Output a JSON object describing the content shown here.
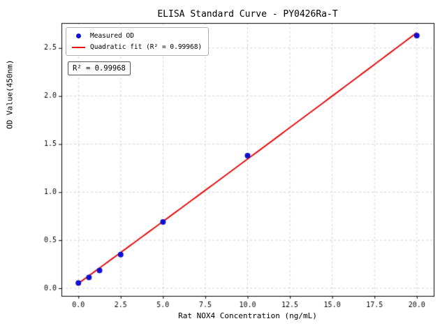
{
  "chart_data": {
    "type": "scatter",
    "title": "ELISA Standard Curve - PY0426Ra-T",
    "xlabel": "Rat NOX4 Concentration (ng/mL)",
    "ylabel": "OD Value(450nm)",
    "xlim": [
      -1,
      21
    ],
    "ylim": [
      -0.08,
      2.76
    ],
    "xticks": [
      0.0,
      2.5,
      5.0,
      7.5,
      10.0,
      12.5,
      15.0,
      17.5,
      20.0
    ],
    "yticks": [
      0.0,
      0.5,
      1.0,
      1.5,
      2.0,
      2.5
    ],
    "grid": true,
    "grid_style": "dashed",
    "legend_position": "upper left",
    "annotation": "R² = 0.99968",
    "colors": {
      "points": "#1010d0",
      "fit_line": "#e81010",
      "grid": "#c9c9c9",
      "axis": "#000000"
    },
    "series": [
      {
        "name": "Measured OD",
        "type": "scatter",
        "color": "#1010d0",
        "x": [
          0,
          0.625,
          1.25,
          2.5,
          5,
          10,
          20
        ],
        "y": [
          0.055,
          0.112,
          0.185,
          0.35,
          0.69,
          1.38,
          2.63
        ]
      },
      {
        "name": "Quadratic fit (R² = 0.99968)",
        "type": "line",
        "color": "#e81010",
        "fit_coeffs": [
          0.05,
          0.1285,
          0.0001
        ],
        "x_range": [
          0,
          20
        ]
      }
    ]
  }
}
